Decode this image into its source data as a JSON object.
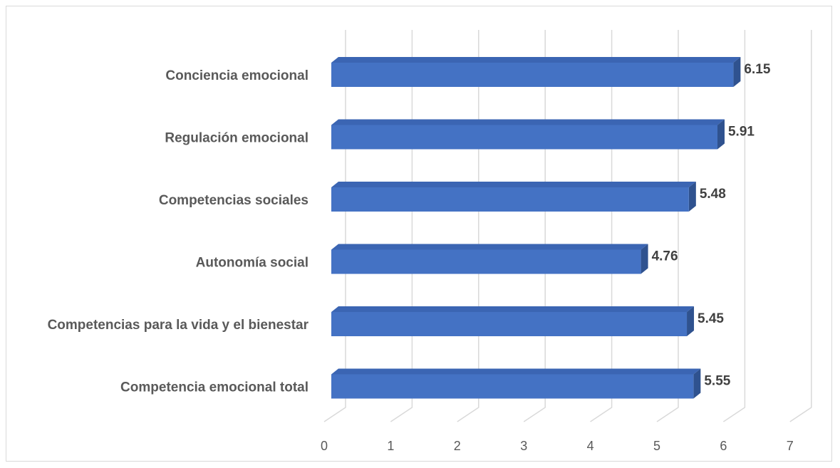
{
  "chart_data": {
    "type": "bar",
    "orientation": "horizontal",
    "categories": [
      "Conciencia emocional",
      "Regulación emocional",
      "Competencias sociales",
      "Autonomía social",
      "Competencias para la vida y el bienestar",
      "Competencia emocional total"
    ],
    "values": [
      6.15,
      5.91,
      5.48,
      4.76,
      5.45,
      5.55
    ],
    "value_labels": [
      "6.15",
      "5.91",
      "5.48",
      "4.76",
      "5.45",
      "5.55"
    ],
    "x_ticks": [
      "0",
      "1",
      "2",
      "3",
      "4",
      "5",
      "6",
      "7"
    ],
    "xlim": [
      0,
      7
    ],
    "grid": true,
    "legend": "none",
    "style": "3d",
    "colors": {
      "bar_front": "#4472c4",
      "bar_top": "#3b65b3",
      "bar_side": "#2f528f",
      "grid": "#d9d9d9",
      "frame": "#d9d9d9"
    }
  }
}
